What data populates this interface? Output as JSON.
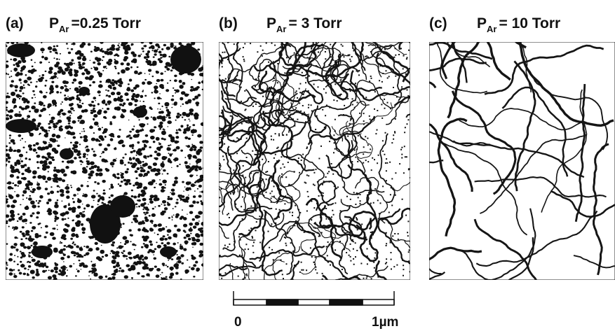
{
  "panels": [
    {
      "label": "(a)",
      "symbol": "P",
      "subscript": "Ar",
      "value": "=0.25 Torr"
    },
    {
      "label": "(b)",
      "symbol": "P",
      "subscript": "Ar",
      "value": "= 3 Torr"
    },
    {
      "label": "(c)",
      "symbol": "P",
      "subscript": "Ar",
      "value": "= 10 Torr"
    }
  ],
  "scale_bar": {
    "start_label": "0",
    "end_label": "1µm"
  }
}
